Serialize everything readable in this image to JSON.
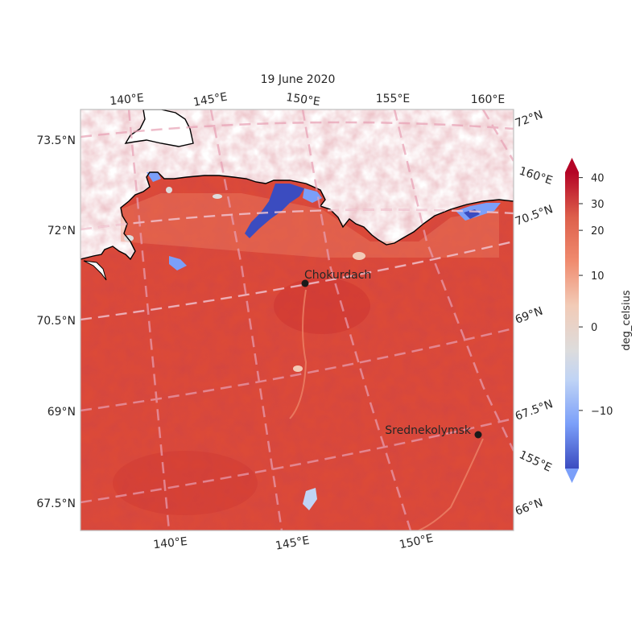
{
  "title": "19 June 2020",
  "colorbar": {
    "label": "deg_celsius",
    "ticks": [
      {
        "value": 40,
        "label": "40"
      },
      {
        "value": 30,
        "label": "30"
      },
      {
        "value": 20,
        "label": "20"
      },
      {
        "value": 10,
        "label": "10"
      },
      {
        "value": 0,
        "label": "0"
      },
      {
        "value": -10,
        "label": "−10"
      }
    ],
    "range": [
      -18,
      42
    ],
    "extend": "both",
    "colormap": "coolwarm"
  },
  "lat_labels_left": [
    "73.5°N",
    "72°N",
    "70.5°N",
    "69°N",
    "67.5°N"
  ],
  "lon_labels_top": [
    "140°E",
    "145°E",
    "150°E",
    "155°E",
    "160°E"
  ],
  "lon_labels_bottom": [
    "140°E",
    "145°E",
    "150°E"
  ],
  "right_labels": [
    "72°N",
    "160°E",
    "70.5°N",
    "69°N",
    "67.5°N",
    "155°E",
    "66°N"
  ],
  "cities": [
    {
      "name": "Chokurdach"
    },
    {
      "name": "Srednekolymsk"
    }
  ],
  "colors": {
    "land_hot": "#d93d2e",
    "land_warm": "#e0533f",
    "cold": "#3b4cc0",
    "gridline": "#e8a0b4",
    "coast": "#000000"
  }
}
